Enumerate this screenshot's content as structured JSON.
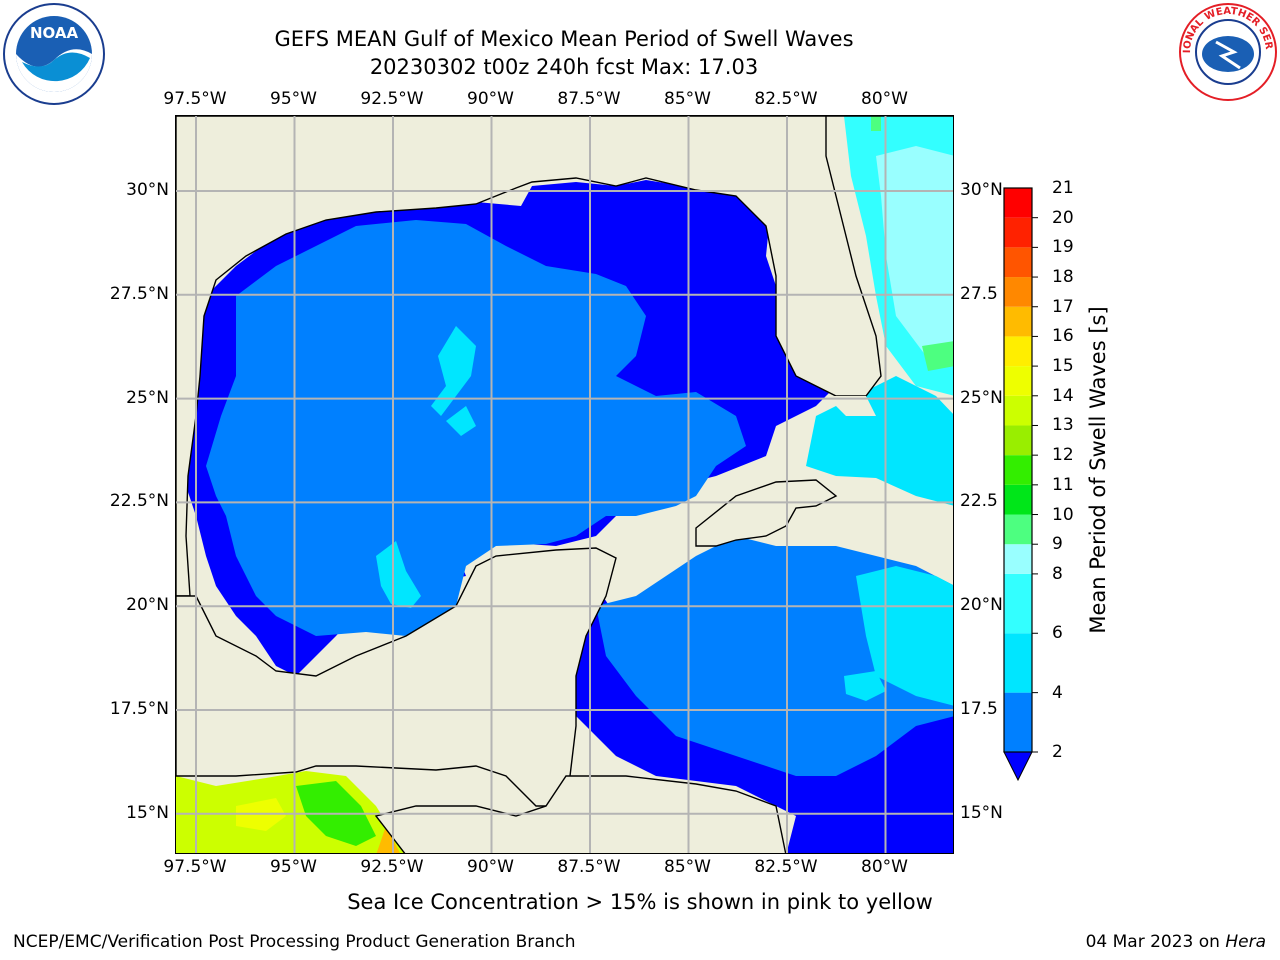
{
  "header": {
    "title": "GEFS MEAN Gulf of Mexico Mean Period of Swell Waves",
    "subtitle": "20230302 t00z 240h fcst   Max: 17.03"
  },
  "map": {
    "lon_ticks": [
      "97.5°W",
      "95°W",
      "92.5°W",
      "90°W",
      "87.5°W",
      "85°W",
      "82.5°W",
      "80°W"
    ],
    "lat_ticks_left": [
      "30°N",
      "27.5°N",
      "25°N",
      "22.5°N",
      "20°N",
      "17.5°N",
      "15°N"
    ],
    "lat_ticks_right": [
      "30°N",
      "27.5",
      "25°N",
      "22.5",
      "20°N",
      "17.5",
      "15°N"
    ],
    "colors": {
      "land": "#eeeedc",
      "grid": "#b4b4b4",
      "coast": "#000000",
      "nodata": "#ffffff"
    }
  },
  "colorbar": {
    "label": "Mean Period of Swell Waves [s]",
    "ticks": [
      "21",
      "20",
      "19",
      "18",
      "17",
      "16",
      "15",
      "14",
      "13",
      "12",
      "11",
      "10",
      "9",
      "8",
      "6",
      "4",
      "2"
    ],
    "bands": [
      {
        "lo": 2,
        "hi": 4,
        "color": "#0080ff"
      },
      {
        "lo": 4,
        "hi": 6,
        "color": "#00e6ff"
      },
      {
        "lo": 6,
        "hi": 8,
        "color": "#33ffff"
      },
      {
        "lo": 8,
        "hi": 9,
        "color": "#99ffff"
      },
      {
        "lo": 9,
        "hi": 10,
        "color": "#4dff80"
      },
      {
        "lo": 10,
        "hi": 11,
        "color": "#00e619"
      },
      {
        "lo": 11,
        "hi": 12,
        "color": "#33ee00"
      },
      {
        "lo": 12,
        "hi": 13,
        "color": "#99ee00"
      },
      {
        "lo": 13,
        "hi": 14,
        "color": "#ccff00"
      },
      {
        "lo": 14,
        "hi": 15,
        "color": "#eeff00"
      },
      {
        "lo": 15,
        "hi": 16,
        "color": "#ffee00"
      },
      {
        "lo": 16,
        "hi": 17,
        "color": "#ffbb00"
      },
      {
        "lo": 17,
        "hi": 18,
        "color": "#ff8800"
      },
      {
        "lo": 18,
        "hi": 19,
        "color": "#ff5500"
      },
      {
        "lo": 19,
        "hi": 20,
        "color": "#ff2200"
      },
      {
        "lo": 20,
        "hi": 21,
        "color": "#ff0000"
      }
    ],
    "under_color": "#0000ff"
  },
  "footer": {
    "note": "Sea Ice Concentration > 15% is shown in pink to yellow",
    "credit": "NCEP/EMC/Verification Post Processing Product Generation Branch",
    "date_prefix": "04 Mar 2023 on ",
    "machine": "Hera"
  },
  "logos": {
    "noaa_text": "NOAA",
    "nws_text": "NATIONAL WEATHER SERVICE"
  }
}
